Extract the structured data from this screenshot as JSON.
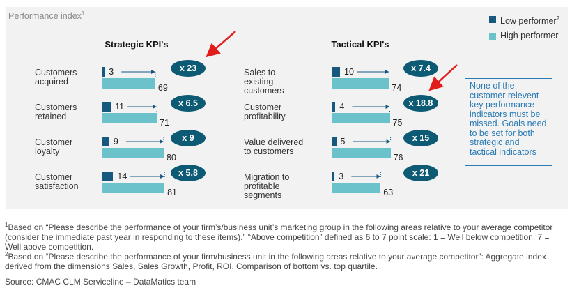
{
  "header": {
    "title": "Performance index",
    "title_note": "1"
  },
  "legend": {
    "position": "top-right",
    "note": "2"
  },
  "chart_data": [
    {
      "type": "bar",
      "orientation": "horizontal",
      "title": "Strategic KPI's",
      "categories": [
        "Customers acquired",
        "Customers retained",
        "Customer loyalty",
        "Customer satisfaction"
      ],
      "series": [
        {
          "name": "Low performer",
          "color": "#17587f",
          "values": [
            3,
            11,
            9,
            14
          ]
        },
        {
          "name": "High performer",
          "color": "#6cc2cb",
          "values": [
            69,
            71,
            80,
            81
          ]
        }
      ],
      "ratio_labels": [
        "x 23",
        "x 6.5",
        "x 9",
        "x 5.8"
      ]
    },
    {
      "type": "bar",
      "orientation": "horizontal",
      "title": "Tactical KPI's",
      "categories": [
        "Sales to existing customers",
        "Customer profitability",
        "Value delivered to customers",
        "Migration to profitable segments"
      ],
      "series": [
        {
          "name": "Low performer",
          "color": "#17587f",
          "values": [
            10,
            4,
            5,
            3
          ]
        },
        {
          "name": "High performer",
          "color": "#6cc2cb",
          "values": [
            74,
            75,
            76,
            63
          ]
        }
      ],
      "ratio_labels": [
        "x 7.4",
        "x 18.8",
        "x 15",
        "x 21"
      ]
    }
  ],
  "note_box": "None of the customer relevent key performance indicators must be missed. Goals need to be set for both strategic and tactical indicators",
  "footnotes": [
    {
      "mark": "1",
      "text": "Based on “Please describe the performance of your firm’s/business unit’s marketing group in the following areas relative to your average competitor (consider the immediate past year in responding to these items).” “Above competition” defined as 6 to 7 point scale: 1 = Well below competition, 7 = Well above competition."
    },
    {
      "mark": "2",
      "text": "Based on “Please describe the performance of your firm/business unit in the following areas relative to your average competitor”: Aggregate index derived from the dimensions Sales, Sales Growth, Profit, ROI. Comparison of bottom vs. top quartile."
    }
  ],
  "source": "Source: CMAC CLM Serviceline – DataMatics team"
}
